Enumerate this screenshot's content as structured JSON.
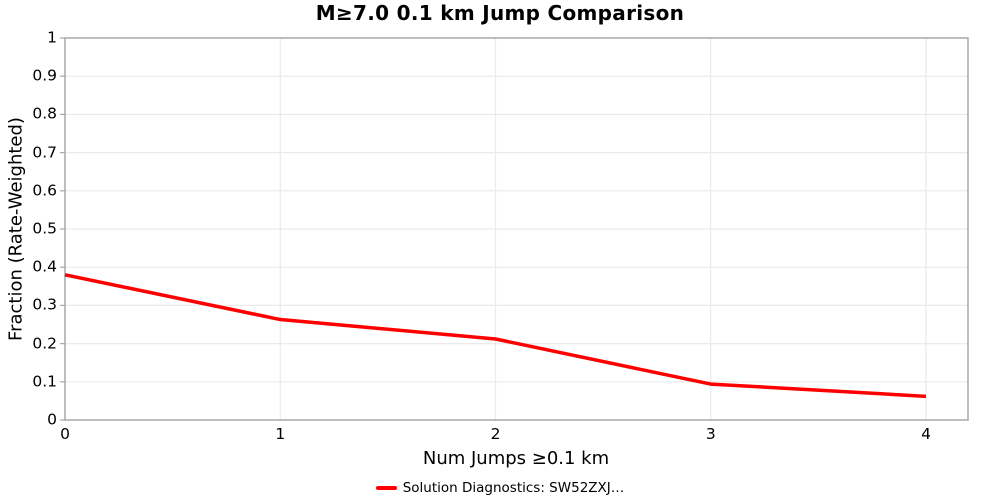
{
  "chart_data": {
    "type": "line",
    "title": "M≥7.0 0.1 km Jump Comparison",
    "xlabel": "Num Jumps ≥0.1 km",
    "ylabel": "Fraction (Rate-Weighted)",
    "x": [
      0,
      1,
      2,
      3,
      4
    ],
    "series": [
      {
        "name": "Solution Diagnostics: SW52ZXJ…",
        "color": "#ff0000",
        "values": [
          0.38,
          0.263,
          0.212,
          0.094,
          0.062
        ]
      }
    ],
    "xlim": [
      0,
      4.2
    ],
    "ylim": [
      0,
      1
    ],
    "xticks": [
      0,
      1,
      2,
      3,
      4
    ],
    "xtick_labels": [
      "0",
      "1",
      "2",
      "3",
      "4"
    ],
    "yticks": [
      0,
      0.1,
      0.2,
      0.3,
      0.4,
      0.5,
      0.6,
      0.7,
      0.8,
      0.9,
      1
    ],
    "ytick_labels": [
      "0",
      "0.1",
      "0.2",
      "0.3",
      "0.4",
      "0.5",
      "0.6",
      "0.7",
      "0.8",
      "0.9",
      "1"
    ],
    "grid": true,
    "legend_position": "bottom",
    "colors": {
      "line": "#ff0000",
      "grid": "#eaeaea",
      "frame": "#adadad",
      "text": "#000000"
    }
  }
}
